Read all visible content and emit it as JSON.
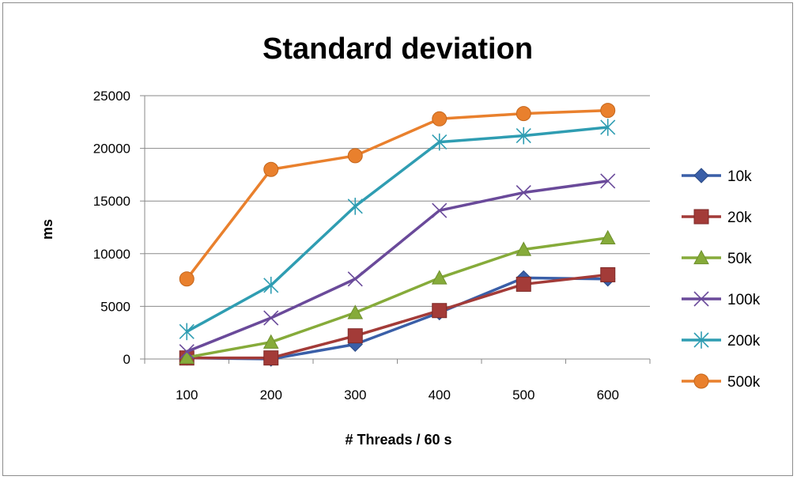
{
  "chart_data": {
    "type": "line",
    "title": "Standard deviation",
    "xlabel": "# Threads / 60 s",
    "ylabel": "ms",
    "x": [
      100,
      200,
      300,
      400,
      500,
      600
    ],
    "ylim": [
      0,
      25000
    ],
    "yticks": [
      0,
      5000,
      10000,
      15000,
      20000,
      25000
    ],
    "grid": "horizontal major gridlines",
    "legend_position": "right",
    "series": [
      {
        "name": "10k",
        "color": "#3a5fa8",
        "marker": "diamond",
        "values": [
          100,
          0,
          1400,
          4400,
          7700,
          7600
        ]
      },
      {
        "name": "20k",
        "color": "#a33b38",
        "marker": "square",
        "values": [
          100,
          100,
          2200,
          4600,
          7100,
          8000
        ]
      },
      {
        "name": "50k",
        "color": "#86ab3a",
        "marker": "triangle",
        "values": [
          150,
          1600,
          4400,
          7700,
          10400,
          11500
        ]
      },
      {
        "name": "100k",
        "color": "#6a4a9a",
        "marker": "x",
        "values": [
          700,
          3900,
          7600,
          14100,
          15800,
          16900
        ]
      },
      {
        "name": "200k",
        "color": "#2f9db2",
        "marker": "star",
        "values": [
          2600,
          7000,
          14500,
          20600,
          21200,
          22000
        ]
      },
      {
        "name": "500k",
        "color": "#e9802d",
        "marker": "circle",
        "values": [
          7600,
          18000,
          19300,
          22800,
          23300,
          23600
        ]
      }
    ]
  }
}
